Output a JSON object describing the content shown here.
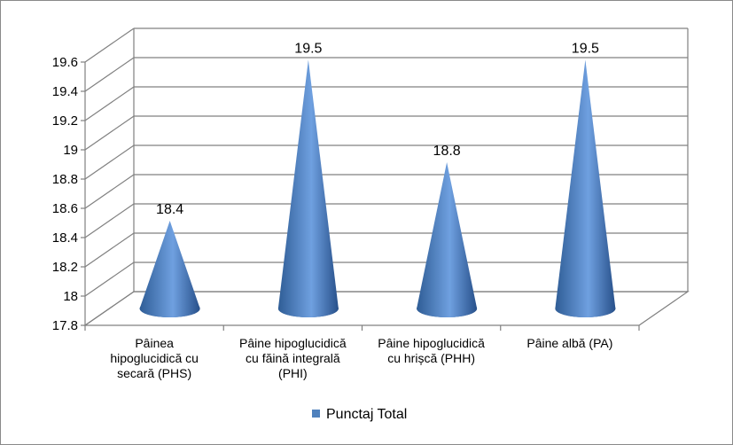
{
  "chart_data": {
    "type": "bar",
    "shape": "3d-cone",
    "categories": [
      "Pâinea hipoglucidică cu secară (PHS)",
      "Pâine hipoglucidică cu făină integrală (PHI)",
      "Pâine hipoglucidică cu hrișcă (PHH)",
      "Pâine albă (PA)"
    ],
    "category_lines": [
      [
        "Pâinea",
        "hipoglucidică cu",
        "secară (PHS)"
      ],
      [
        "Pâine hipoglucidică",
        "cu făină integrală",
        "(PHI)"
      ],
      [
        "Pâine hipoglucidică",
        "cu hrișcă (PHH)"
      ],
      [
        "Pâine albă (PA)"
      ]
    ],
    "series": [
      {
        "name": "Punctaj Total",
        "values": [
          18.4,
          19.5,
          18.8,
          19.5
        ],
        "color": "#4f81bd"
      }
    ],
    "data_labels": [
      "18.4",
      "19.5",
      "18.8",
      "19.5"
    ],
    "ylim": [
      17.8,
      19.6
    ],
    "yticks": [
      "17.8",
      "18",
      "18.2",
      "18.4",
      "18.6",
      "18.8",
      "19",
      "19.2",
      "19.4",
      "19.6"
    ],
    "grid": true,
    "legend": "bottom"
  }
}
